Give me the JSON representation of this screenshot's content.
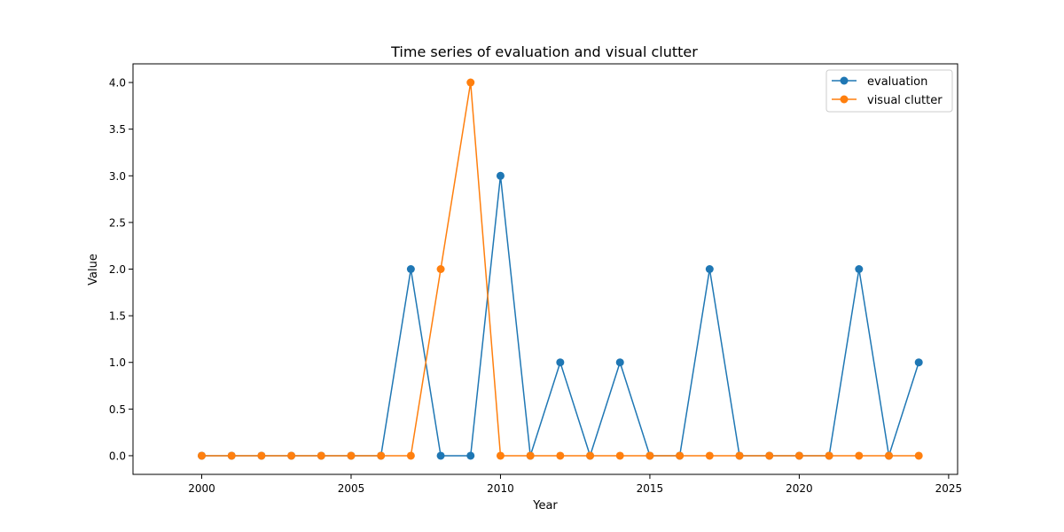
{
  "chart_data": {
    "type": "line",
    "title": "Time series of evaluation and visual clutter",
    "xlabel": "Year",
    "ylabel": "Value",
    "xlim": [
      1997.7,
      2025.3
    ],
    "ylim": [
      -0.2,
      4.2
    ],
    "xticks": [
      2000,
      2005,
      2010,
      2015,
      2020,
      2025
    ],
    "xtick_labels": [
      "2000",
      "2005",
      "2010",
      "2015",
      "2020",
      "2025"
    ],
    "yticks": [
      0,
      0.5,
      1,
      1.5,
      2,
      2.5,
      3,
      3.5,
      4
    ],
    "ytick_labels": [
      "0.0",
      "0.5",
      "1.0",
      "1.5",
      "2.0",
      "2.5",
      "3.0",
      "3.5",
      "4.0"
    ],
    "grid": false,
    "legend_position": "top-right",
    "x": [
      2000,
      2001,
      2002,
      2003,
      2004,
      2005,
      2006,
      2007,
      2008,
      2009,
      2010,
      2011,
      2012,
      2013,
      2014,
      2015,
      2016,
      2017,
      2018,
      2019,
      2020,
      2021,
      2022,
      2023,
      2024
    ],
    "series": [
      {
        "name": "evaluation",
        "color": "#1f77b4",
        "marker": "circle",
        "values": [
          0,
          0,
          0,
          0,
          0,
          0,
          0,
          2,
          0,
          0,
          3,
          0,
          1,
          0,
          1,
          0,
          0,
          2,
          0,
          0,
          0,
          0,
          2,
          0,
          1
        ]
      },
      {
        "name": "visual clutter",
        "color": "#ff7f0e",
        "marker": "circle",
        "values": [
          0,
          0,
          0,
          0,
          0,
          0,
          0,
          0,
          2,
          4,
          0,
          0,
          0,
          0,
          0,
          0,
          0,
          0,
          0,
          0,
          0,
          0,
          0,
          0,
          0
        ]
      }
    ]
  }
}
